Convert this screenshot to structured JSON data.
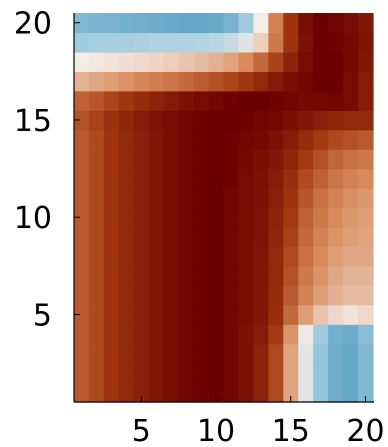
{
  "chart_data": {
    "type": "heatmap",
    "title": "",
    "xlabel": "",
    "ylabel": "",
    "xlim": [
      1,
      20
    ],
    "ylim": [
      1,
      20
    ],
    "x_ticks": [
      {
        "value": 5,
        "label": "5"
      },
      {
        "value": 10,
        "label": "10"
      },
      {
        "value": 15,
        "label": "15"
      },
      {
        "value": 20,
        "label": "20"
      }
    ],
    "y_ticks": [
      {
        "value": 5,
        "label": "5"
      },
      {
        "value": 10,
        "label": "10"
      },
      {
        "value": 15,
        "label": "15"
      },
      {
        "value": 20,
        "label": "20"
      }
    ],
    "colormap": {
      "name": "diverging blue-white-brown",
      "stops": [
        "#5aa0c4",
        "#a8cfe0",
        "#f4ece8",
        "#d88a5a",
        "#a33a10",
        "#6b0000"
      ]
    },
    "z_range": [
      0,
      1
    ],
    "grid": false,
    "legend": "none",
    "rows": [
      {
        "y": 1,
        "values": [
          0.72,
          0.76,
          0.82,
          0.86,
          0.89,
          0.92,
          0.95,
          0.98,
          0.99,
          1.0,
          0.98,
          0.94,
          0.88,
          0.76,
          0.55,
          0.35,
          0.15,
          0.05,
          0.03,
          0.1
        ]
      },
      {
        "y": 2,
        "values": [
          0.72,
          0.76,
          0.82,
          0.86,
          0.89,
          0.92,
          0.95,
          0.98,
          0.99,
          1.0,
          0.98,
          0.94,
          0.88,
          0.76,
          0.55,
          0.35,
          0.15,
          0.05,
          0.03,
          0.1
        ]
      },
      {
        "y": 3,
        "values": [
          0.72,
          0.76,
          0.82,
          0.86,
          0.89,
          0.92,
          0.95,
          0.98,
          0.99,
          1.0,
          0.98,
          0.94,
          0.88,
          0.76,
          0.55,
          0.35,
          0.15,
          0.05,
          0.03,
          0.1
        ]
      },
      {
        "y": 4,
        "values": [
          0.72,
          0.76,
          0.82,
          0.86,
          0.89,
          0.92,
          0.95,
          0.98,
          0.99,
          1.0,
          0.98,
          0.94,
          0.9,
          0.8,
          0.58,
          0.38,
          0.18,
          0.07,
          0.05,
          0.12
        ]
      },
      {
        "y": 5,
        "values": [
          0.72,
          0.76,
          0.82,
          0.86,
          0.89,
          0.92,
          0.95,
          0.98,
          0.99,
          1.0,
          0.98,
          0.95,
          0.92,
          0.84,
          0.68,
          0.56,
          0.48,
          0.44,
          0.42,
          0.44
        ]
      },
      {
        "y": 6,
        "values": [
          0.72,
          0.76,
          0.82,
          0.86,
          0.89,
          0.92,
          0.95,
          0.98,
          0.99,
          1.0,
          0.98,
          0.95,
          0.92,
          0.85,
          0.72,
          0.62,
          0.56,
          0.52,
          0.5,
          0.5
        ]
      },
      {
        "y": 7,
        "values": [
          0.72,
          0.76,
          0.82,
          0.86,
          0.89,
          0.92,
          0.95,
          0.98,
          0.99,
          1.0,
          0.98,
          0.95,
          0.92,
          0.86,
          0.74,
          0.64,
          0.58,
          0.54,
          0.52,
          0.52
        ]
      },
      {
        "y": 8,
        "values": [
          0.72,
          0.76,
          0.82,
          0.86,
          0.89,
          0.92,
          0.95,
          0.98,
          0.99,
          1.0,
          0.98,
          0.95,
          0.92,
          0.86,
          0.76,
          0.66,
          0.6,
          0.56,
          0.54,
          0.54
        ]
      },
      {
        "y": 9,
        "values": [
          0.72,
          0.76,
          0.82,
          0.86,
          0.89,
          0.92,
          0.95,
          0.98,
          0.99,
          1.0,
          0.98,
          0.95,
          0.93,
          0.87,
          0.78,
          0.68,
          0.62,
          0.58,
          0.56,
          0.55
        ]
      },
      {
        "y": 10,
        "values": [
          0.72,
          0.76,
          0.82,
          0.86,
          0.89,
          0.92,
          0.95,
          0.98,
          0.99,
          1.0,
          0.98,
          0.95,
          0.93,
          0.88,
          0.8,
          0.7,
          0.64,
          0.6,
          0.57,
          0.56
        ]
      },
      {
        "y": 11,
        "values": [
          0.72,
          0.76,
          0.82,
          0.86,
          0.89,
          0.92,
          0.95,
          0.98,
          0.99,
          1.0,
          0.98,
          0.96,
          0.94,
          0.89,
          0.82,
          0.73,
          0.66,
          0.62,
          0.59,
          0.57
        ]
      },
      {
        "y": 12,
        "values": [
          0.72,
          0.76,
          0.82,
          0.86,
          0.89,
          0.92,
          0.95,
          0.98,
          0.99,
          1.0,
          0.99,
          0.96,
          0.94,
          0.9,
          0.84,
          0.76,
          0.7,
          0.65,
          0.62,
          0.6
        ]
      },
      {
        "y": 13,
        "values": [
          0.72,
          0.76,
          0.82,
          0.86,
          0.89,
          0.92,
          0.95,
          0.98,
          0.99,
          1.0,
          0.99,
          0.97,
          0.95,
          0.92,
          0.87,
          0.8,
          0.74,
          0.69,
          0.66,
          0.64
        ]
      },
      {
        "y": 14,
        "values": [
          0.72,
          0.76,
          0.82,
          0.86,
          0.89,
          0.92,
          0.95,
          0.98,
          0.99,
          1.0,
          0.99,
          0.98,
          0.97,
          0.94,
          0.9,
          0.85,
          0.8,
          0.76,
          0.74,
          0.72
        ]
      },
      {
        "y": 15,
        "values": [
          0.74,
          0.78,
          0.83,
          0.87,
          0.9,
          0.93,
          0.96,
          0.98,
          0.99,
          1.0,
          1.0,
          0.99,
          0.98,
          0.97,
          0.95,
          0.92,
          0.89,
          0.87,
          0.86,
          0.86
        ]
      },
      {
        "y": 16,
        "values": [
          0.7,
          0.73,
          0.77,
          0.81,
          0.85,
          0.88,
          0.91,
          0.94,
          0.96,
          0.98,
          0.99,
          1.0,
          1.0,
          0.99,
          0.98,
          0.97,
          0.97,
          0.98,
          0.96,
          0.9
        ]
      },
      {
        "y": 17,
        "values": [
          0.52,
          0.54,
          0.56,
          0.58,
          0.61,
          0.63,
          0.65,
          0.68,
          0.71,
          0.74,
          0.77,
          0.81,
          0.86,
          0.91,
          0.95,
          0.98,
          1.0,
          1.0,
          0.96,
          0.9
        ]
      },
      {
        "y": 18,
        "values": [
          0.4,
          0.41,
          0.42,
          0.43,
          0.44,
          0.45,
          0.46,
          0.48,
          0.5,
          0.52,
          0.55,
          0.6,
          0.68,
          0.78,
          0.88,
          0.96,
          1.0,
          1.0,
          0.97,
          0.92
        ]
      },
      {
        "y": 19,
        "values": [
          0.18,
          0.19,
          0.2,
          0.2,
          0.21,
          0.22,
          0.22,
          0.22,
          0.23,
          0.24,
          0.28,
          0.34,
          0.46,
          0.64,
          0.82,
          0.94,
          1.0,
          0.99,
          0.97,
          0.93
        ]
      },
      {
        "y": 20,
        "values": [
          0.1,
          0.09,
          0.08,
          0.07,
          0.06,
          0.05,
          0.04,
          0.03,
          0.03,
          0.04,
          0.08,
          0.18,
          0.4,
          0.62,
          0.82,
          0.95,
          1.0,
          0.98,
          0.96,
          0.92
        ]
      }
    ]
  }
}
